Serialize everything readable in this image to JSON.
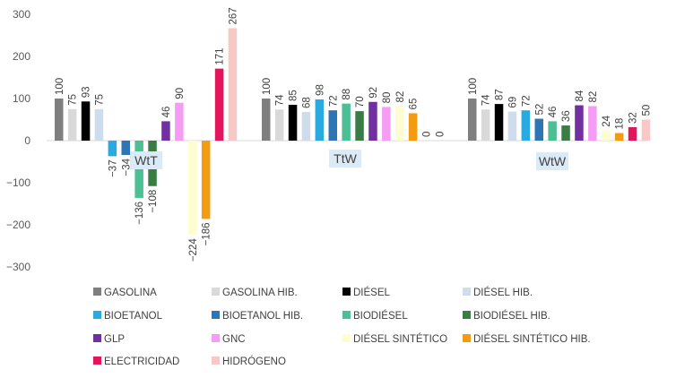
{
  "chart_data": {
    "type": "bar",
    "title": "",
    "xlabel": "",
    "ylabel": "",
    "ylim": [
      -300,
      300
    ],
    "yticks": [
      -300,
      -200,
      -100,
      0,
      100,
      200,
      300
    ],
    "grid": false,
    "legend_position": "bottom",
    "categories": [
      "WtT",
      "TtW",
      "WtW"
    ],
    "series": [
      {
        "name": "GASOLINA",
        "color": "#7f7f7f",
        "values": [
          100,
          100,
          100
        ]
      },
      {
        "name": "GASOLINA HIB.",
        "color": "#d9d9d9",
        "values": [
          75,
          74,
          74
        ]
      },
      {
        "name": "DIÉSEL",
        "color": "#000000",
        "values": [
          93,
          85,
          87
        ]
      },
      {
        "name": "DIÉSEL HIB.",
        "color": "#cfdceb",
        "values": [
          75,
          68,
          69
        ]
      },
      {
        "name": "BIOETANOL",
        "color": "#29aae1",
        "values": [
          -37,
          98,
          72
        ]
      },
      {
        "name": "BIOETANOL HIB.",
        "color": "#2e75b6",
        "values": [
          -34,
          72,
          52
        ]
      },
      {
        "name": "BIODIÉSEL",
        "color": "#4dbf95",
        "values": [
          -136,
          88,
          46
        ]
      },
      {
        "name": "BIODIÉSEL HIB.",
        "color": "#3a7d44",
        "values": [
          -108,
          70,
          36
        ]
      },
      {
        "name": "GLP",
        "color": "#7030a0",
        "values": [
          46,
          92,
          84
        ]
      },
      {
        "name": "GNC",
        "color": "#f59df5",
        "values": [
          90,
          80,
          82
        ]
      },
      {
        "name": "DIÉSEL SINTÉTICO",
        "color": "#fdfdcf",
        "values": [
          -224,
          82,
          24
        ]
      },
      {
        "name": "DIÉSEL SINTÉTICO HIB.",
        "color": "#f39c12",
        "values": [
          -186,
          65,
          18
        ]
      },
      {
        "name": "ELECTRICIDAD",
        "color": "#e3165b",
        "values": [
          171,
          0,
          32
        ]
      },
      {
        "name": "HIDRÓGENO",
        "color": "#f8c8c8",
        "values": [
          267,
          0,
          50
        ]
      }
    ],
    "shown_labels": [
      [
        true,
        true,
        true,
        true,
        true,
        true,
        true,
        true,
        true,
        true,
        true,
        true,
        true,
        true
      ],
      [
        true,
        true,
        true,
        true,
        true,
        true,
        true,
        true,
        true,
        true,
        true,
        true,
        true,
        true
      ],
      [
        true,
        true,
        true,
        true,
        true,
        true,
        true,
        true,
        true,
        true,
        true,
        true,
        true,
        true
      ]
    ]
  }
}
